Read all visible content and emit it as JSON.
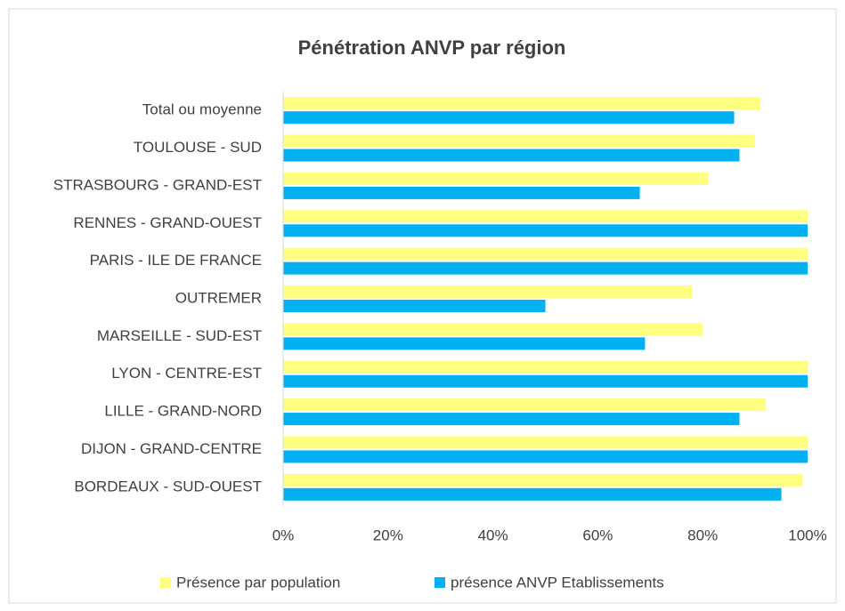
{
  "chart_data": {
    "type": "hbar",
    "title": "Pénétration ANVP par région",
    "categories": [
      "Total ou moyenne",
      "TOULOUSE - SUD",
      "STRASBOURG - GRAND-EST",
      "RENNES - GRAND-OUEST",
      "PARIS - ILE DE FRANCE",
      "OUTREMER",
      "MARSEILLE - SUD-EST",
      "LYON - CENTRE-EST",
      "LILLE - GRAND-NORD",
      "DIJON - GRAND-CENTRE",
      "BORDEAUX - SUD-OUEST"
    ],
    "series": [
      {
        "name": "Présence par population",
        "color": "#ffff80",
        "values": [
          91,
          90,
          81,
          100,
          100,
          78,
          80,
          100,
          92,
          100,
          99
        ]
      },
      {
        "name": "présence ANVP Etablissements",
        "color": "#00b0f0",
        "values": [
          86,
          87,
          68,
          100,
          100,
          50,
          69,
          100,
          87,
          100,
          95
        ]
      }
    ],
    "xlim": [
      0,
      100
    ],
    "xticks": [
      {
        "value": 0,
        "label": "0%"
      },
      {
        "value": 20,
        "label": "20%"
      },
      {
        "value": 40,
        "label": "40%"
      },
      {
        "value": 60,
        "label": "60%"
      },
      {
        "value": 80,
        "label": "80%"
      },
      {
        "value": 100,
        "label": "100%"
      }
    ],
    "grid": false,
    "legend": "bottom"
  }
}
